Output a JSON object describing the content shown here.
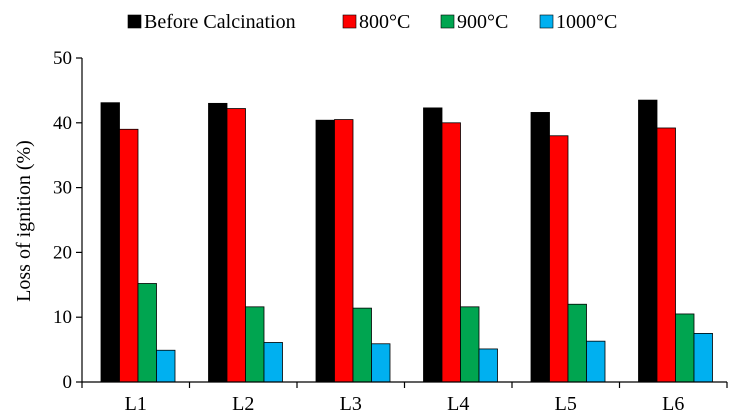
{
  "chart_data": {
    "type": "bar",
    "categories": [
      "L1",
      "L2",
      "L3",
      "L4",
      "L5",
      "L6"
    ],
    "series": [
      {
        "name": "Before Calcination",
        "color": "#000000",
        "values": [
          43.1,
          43.0,
          40.4,
          42.3,
          41.6,
          43.5
        ]
      },
      {
        "name": "800°C",
        "color": "#ff0000",
        "values": [
          39.0,
          42.2,
          40.5,
          40.0,
          38.0,
          39.2
        ]
      },
      {
        "name": "900°C",
        "color": "#00a550",
        "values": [
          15.2,
          11.6,
          11.4,
          11.6,
          12.0,
          10.5
        ]
      },
      {
        "name": "1000°C",
        "color": "#00b0f0",
        "values": [
          4.9,
          6.1,
          5.9,
          5.1,
          6.3,
          7.5
        ]
      }
    ],
    "ylabel": "Loss of ignition (%)",
    "xlabel": "",
    "ylim": [
      0,
      50
    ],
    "yticks": [
      0,
      10,
      20,
      30,
      40,
      50
    ],
    "grid": false,
    "legend_position": "top"
  }
}
